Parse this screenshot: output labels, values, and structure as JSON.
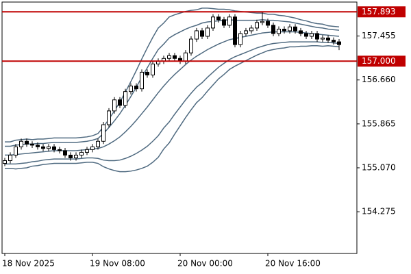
{
  "chart_data": {
    "type": "candlestick",
    "open": [
      155.15,
      155.2,
      155.3,
      155.45,
      155.55,
      155.5,
      155.48,
      155.45,
      155.42,
      155.45,
      155.4,
      155.38,
      155.3,
      155.25,
      155.3,
      155.35,
      155.4,
      155.45,
      155.55,
      155.85,
      156.1,
      156.3,
      156.2,
      156.45,
      156.55,
      156.5,
      156.8,
      156.75,
      156.95,
      157.0,
      157.05,
      157.1,
      157.05,
      157.0,
      157.15,
      157.4,
      157.55,
      157.45,
      157.6,
      157.8,
      157.75,
      157.65,
      157.8,
      157.3,
      157.5,
      157.55,
      157.6,
      157.7,
      157.72,
      157.65,
      157.5,
      157.58,
      157.55,
      157.62,
      157.55,
      157.5,
      157.45,
      157.5,
      157.4,
      157.42,
      157.38,
      157.35
    ],
    "high": [
      155.25,
      155.35,
      155.5,
      155.6,
      155.6,
      155.55,
      155.53,
      155.5,
      155.5,
      155.5,
      155.45,
      155.43,
      155.35,
      155.35,
      155.4,
      155.45,
      155.5,
      155.6,
      155.9,
      156.15,
      156.35,
      156.35,
      156.5,
      156.6,
      156.6,
      156.85,
      156.85,
      157.0,
      157.05,
      157.1,
      157.15,
      157.15,
      157.1,
      157.2,
      157.45,
      157.6,
      157.6,
      157.65,
      157.85,
      157.85,
      157.8,
      157.85,
      157.85,
      157.55,
      157.6,
      157.65,
      157.75,
      157.9,
      157.77,
      157.7,
      157.63,
      157.63,
      157.67,
      157.67,
      157.6,
      157.55,
      157.55,
      157.55,
      157.47,
      157.47,
      157.43,
      157.4
    ],
    "low": [
      155.1,
      155.15,
      155.25,
      155.4,
      155.45,
      155.43,
      155.4,
      155.37,
      155.37,
      155.35,
      155.33,
      155.25,
      155.2,
      155.2,
      155.25,
      155.3,
      155.35,
      155.4,
      155.5,
      155.8,
      156.05,
      156.15,
      156.15,
      156.4,
      156.45,
      156.45,
      156.7,
      156.7,
      156.9,
      156.95,
      157.0,
      157.0,
      156.95,
      156.95,
      157.1,
      157.35,
      157.4,
      157.4,
      157.55,
      157.7,
      157.6,
      157.6,
      157.25,
      157.25,
      157.45,
      157.5,
      157.55,
      157.65,
      157.6,
      157.45,
      157.45,
      157.5,
      157.5,
      157.5,
      157.45,
      157.4,
      157.4,
      157.35,
      157.35,
      157.33,
      157.3,
      157.2
    ],
    "close": [
      155.2,
      155.3,
      155.45,
      155.55,
      155.5,
      155.48,
      155.45,
      155.42,
      155.45,
      155.4,
      155.38,
      155.3,
      155.25,
      155.3,
      155.35,
      155.4,
      155.45,
      155.55,
      155.85,
      156.1,
      156.3,
      156.2,
      156.45,
      156.55,
      156.5,
      156.8,
      156.75,
      156.95,
      157.0,
      157.05,
      157.1,
      157.05,
      157.0,
      157.15,
      157.4,
      157.55,
      157.45,
      157.6,
      157.8,
      157.75,
      157.65,
      157.8,
      157.3,
      157.5,
      157.55,
      157.6,
      157.7,
      157.72,
      157.65,
      157.5,
      157.58,
      157.55,
      157.62,
      157.55,
      157.5,
      157.45,
      157.5,
      157.4,
      157.42,
      157.38,
      157.35,
      157.3
    ],
    "series": [
      {
        "color": "#4f6a80",
        "values": [
          155.54,
          155.54,
          155.57,
          155.58,
          155.59,
          155.58,
          155.59,
          155.59,
          155.6,
          155.61,
          155.61,
          155.61,
          155.61,
          155.61,
          155.62,
          155.63,
          155.65,
          155.69,
          155.81,
          155.95,
          156.1,
          156.26,
          156.44,
          156.63,
          156.83,
          157.04,
          157.24,
          157.43,
          157.6,
          157.69,
          157.8,
          157.84,
          157.87,
          157.9,
          157.92,
          157.93,
          157.96,
          157.96,
          157.95,
          157.94,
          157.94,
          157.93,
          157.91,
          157.9,
          157.89,
          157.88,
          157.87,
          157.87,
          157.85,
          157.85,
          157.83,
          157.82,
          157.8,
          157.78,
          157.75,
          157.73,
          157.7,
          157.68,
          157.67,
          157.64,
          157.63,
          157.62
        ]
      },
      {
        "color": "#4f6a80",
        "values": [
          155.46,
          155.46,
          155.48,
          155.49,
          155.5,
          155.5,
          155.51,
          155.51,
          155.52,
          155.53,
          155.53,
          155.53,
          155.53,
          155.53,
          155.54,
          155.55,
          155.57,
          155.6,
          155.69,
          155.8,
          155.92,
          156.05,
          156.2,
          156.36,
          156.53,
          156.71,
          156.88,
          157.05,
          157.21,
          157.31,
          157.42,
          157.48,
          157.53,
          157.58,
          157.62,
          157.65,
          157.69,
          157.71,
          157.72,
          157.73,
          157.74,
          157.75,
          157.74,
          157.74,
          157.74,
          157.74,
          157.74,
          157.75,
          157.74,
          157.74,
          157.73,
          157.72,
          157.71,
          157.69,
          157.67,
          157.65,
          157.63,
          157.61,
          157.6,
          157.58,
          157.57,
          157.56
        ]
      },
      {
        "color": "#4f6a80",
        "values": [
          155.3,
          155.3,
          155.31,
          155.32,
          155.33,
          155.34,
          155.35,
          155.36,
          155.37,
          155.38,
          155.38,
          155.38,
          155.38,
          155.38,
          155.39,
          155.4,
          155.41,
          155.42,
          155.45,
          155.5,
          155.56,
          155.63,
          155.72,
          155.82,
          155.93,
          156.05,
          156.17,
          156.3,
          156.43,
          156.55,
          156.66,
          156.76,
          156.85,
          156.94,
          157.02,
          157.09,
          157.15,
          157.21,
          157.26,
          157.31,
          157.35,
          157.39,
          157.41,
          157.43,
          157.45,
          157.47,
          157.49,
          157.51,
          157.52,
          157.53,
          157.53,
          157.53,
          157.53,
          157.53,
          157.52,
          157.51,
          157.5,
          157.49,
          157.48,
          157.47,
          157.46,
          157.45
        ]
      },
      {
        "color": "#4f6a80",
        "values": [
          155.14,
          155.14,
          155.14,
          155.15,
          155.16,
          155.18,
          155.19,
          155.21,
          155.22,
          155.23,
          155.23,
          155.23,
          155.23,
          155.23,
          155.24,
          155.25,
          155.25,
          155.24,
          155.21,
          155.2,
          155.2,
          155.21,
          155.24,
          155.28,
          155.33,
          155.39,
          155.46,
          155.55,
          155.65,
          155.79,
          155.9,
          156.04,
          156.17,
          156.3,
          156.42,
          156.53,
          156.61,
          156.71,
          156.8,
          156.89,
          156.96,
          157.03,
          157.08,
          157.12,
          157.16,
          157.2,
          157.24,
          157.27,
          157.3,
          157.32,
          157.33,
          157.34,
          157.35,
          157.35,
          157.35,
          157.35,
          157.35,
          157.35,
          157.34,
          157.34,
          157.33,
          157.32
        ]
      },
      {
        "color": "#4f6a80",
        "values": [
          155.06,
          155.06,
          155.05,
          155.06,
          155.07,
          155.1,
          155.11,
          155.13,
          155.14,
          155.15,
          155.15,
          155.15,
          155.15,
          155.15,
          155.16,
          155.17,
          155.17,
          155.15,
          155.09,
          155.05,
          155.02,
          155.0,
          155.0,
          155.01,
          155.03,
          155.06,
          155.1,
          155.17,
          155.26,
          155.41,
          155.52,
          155.68,
          155.83,
          155.98,
          156.12,
          156.25,
          156.34,
          156.46,
          156.57,
          156.68,
          156.76,
          156.85,
          156.91,
          156.96,
          157.01,
          157.06,
          157.11,
          157.15,
          157.19,
          157.21,
          157.23,
          157.24,
          157.26,
          157.26,
          157.27,
          157.27,
          157.28,
          157.28,
          157.27,
          157.28,
          157.27,
          157.26
        ]
      }
    ],
    "levels": [
      157.893,
      {
        "value": 157.0,
        "label": "157.000"
      }
    ],
    "level_color": "#c00000",
    "up_color": "#ffffff",
    "down_color": "#000000",
    "ylim": [
      153.52,
      158.07
    ],
    "yticks": [
      157.455,
      {
        "value": 156.66,
        "label": "156.660"
      },
      155.865,
      {
        "value": 155.07,
        "label": "155.070"
      },
      154.275
    ],
    "xlim": [
      -0.5,
      64.25
    ],
    "xticks": [
      {
        "value": 0,
        "label": "18 Nov 2025"
      },
      {
        "value": 16,
        "label": "19 Nov 08:00"
      },
      {
        "value": 32,
        "label": "20 Nov 00:00"
      },
      {
        "value": 48,
        "label": "20 Nov 16:00"
      }
    ]
  }
}
